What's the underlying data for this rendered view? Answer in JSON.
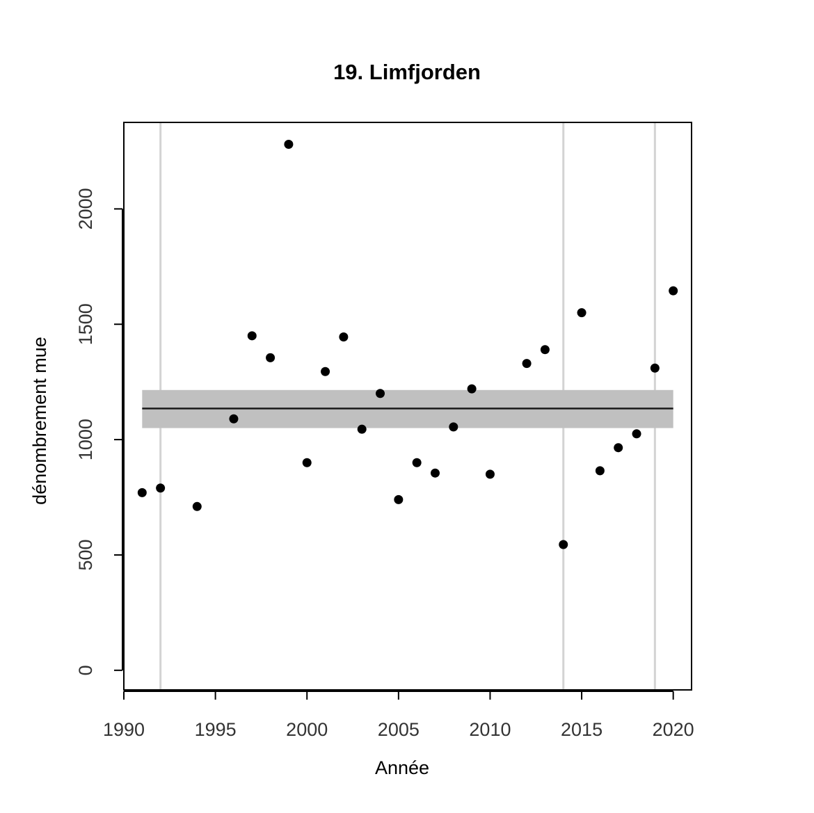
{
  "chart_data": {
    "type": "scatter",
    "title": "19. Limfjorden",
    "xlabel": "Année",
    "ylabel": "dénombrement mue",
    "xlim": [
      1990,
      2021
    ],
    "ylim": [
      -85,
      2375
    ],
    "x_ticks": [
      1990,
      1995,
      2000,
      2005,
      2010,
      2015,
      2020
    ],
    "y_ticks": [
      0,
      500,
      1000,
      1500,
      2000
    ],
    "grid": false,
    "legend": "none",
    "points": [
      {
        "x": 1991,
        "y": 770
      },
      {
        "x": 1992,
        "y": 790
      },
      {
        "x": 1994,
        "y": 710
      },
      {
        "x": 1996,
        "y": 1090
      },
      {
        "x": 1997,
        "y": 1450
      },
      {
        "x": 1998,
        "y": 1355
      },
      {
        "x": 1999,
        "y": 2280
      },
      {
        "x": 2000,
        "y": 900
      },
      {
        "x": 2001,
        "y": 1295
      },
      {
        "x": 2002,
        "y": 1445
      },
      {
        "x": 2003,
        "y": 1045
      },
      {
        "x": 2004,
        "y": 1200
      },
      {
        "x": 2005,
        "y": 740
      },
      {
        "x": 2006,
        "y": 900
      },
      {
        "x": 2007,
        "y": 855
      },
      {
        "x": 2008,
        "y": 1055
      },
      {
        "x": 2009,
        "y": 1220
      },
      {
        "x": 2010,
        "y": 850
      },
      {
        "x": 2012,
        "y": 1330
      },
      {
        "x": 2013,
        "y": 1390
      },
      {
        "x": 2014,
        "y": 545
      },
      {
        "x": 2015,
        "y": 1550
      },
      {
        "x": 2016,
        "y": 865
      },
      {
        "x": 2017,
        "y": 965
      },
      {
        "x": 2018,
        "y": 1025
      },
      {
        "x": 2019,
        "y": 1310
      },
      {
        "x": 2020,
        "y": 1645
      }
    ],
    "mean_line": {
      "x_start": 1991,
      "x_end": 2020,
      "y": 1135
    },
    "confidence_band": {
      "x_start": 1991,
      "x_end": 2020,
      "y_low": 1050,
      "y_high": 1215
    },
    "vertical_lines_x": [
      1992,
      2014,
      2019
    ],
    "colors": {
      "points": "#000000",
      "mean_line": "#1a1a1a",
      "band": "#c0c0c0",
      "vertical_lines": "#d3d3d3",
      "axis": "#000000",
      "tick_labels": "#333333"
    }
  }
}
